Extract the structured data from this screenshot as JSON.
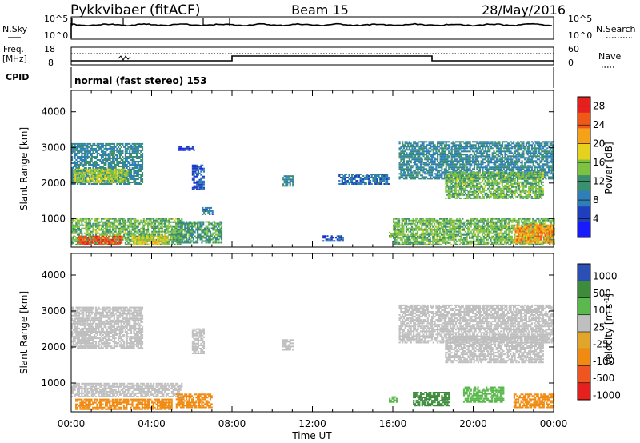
{
  "header": {
    "radar": "Pykkvibaer (fitACF)",
    "beam": "Beam 15",
    "date": "28/May/2016"
  },
  "top_panels": {
    "nsky_label": "N.Sky",
    "nsky_ticks": [
      "10^5",
      "10^0"
    ],
    "nsearch_label": "N.Search",
    "nsearch_ticks": [
      "10^5",
      "10^0"
    ],
    "freq_label_1": "Freq.",
    "freq_label_2": "[MHz]",
    "freq_ticks": [
      "18",
      "8"
    ],
    "nave_label": "Nave",
    "nave_ticks": [
      "60",
      "0"
    ],
    "cpid_label": "CPID",
    "cpid_value": "normal (fast stereo) 153"
  },
  "colors": {
    "power_scale": [
      "#1a1aff",
      "#1f3fbf",
      "#2e7fb8",
      "#3a8f6e",
      "#7dc241",
      "#e6d21c",
      "#f5a21a",
      "#ee5a16",
      "#e61f1f"
    ],
    "velocity_scale": [
      "#2a4fb5",
      "#3c8c3c",
      "#5ab84d",
      "#c8c8c0",
      "#e0a52a",
      "#f08a10",
      "#ee5520",
      "#e61f1f"
    ],
    "ground_scatter": "#bfbfbf"
  },
  "chart_data": [
    {
      "type": "heatmap",
      "parameter": "power",
      "ylabel": "Slant Range [km]",
      "xlabel": "Time UT",
      "x_ticks": [
        "00:00",
        "04:00",
        "08:00",
        "12:00",
        "16:00",
        "20:00",
        "00:00"
      ],
      "y_ticks": [
        1000,
        2000,
        3000,
        4000
      ],
      "ylim": [
        200,
        4600
      ],
      "xlim_hours": [
        0,
        24
      ],
      "colorbar_label": "Power [dB]",
      "colorbar_ticks": [
        4,
        8,
        12,
        16,
        20,
        24,
        28
      ],
      "colorbar_range": [
        0,
        30
      ],
      "regions": [
        {
          "t": [
            0.0,
            3.5
          ],
          "r": [
            1950,
            3100
          ],
          "value": 10
        },
        {
          "t": [
            0.1,
            2.8
          ],
          "r": [
            2000,
            2400
          ],
          "value": 16
        },
        {
          "t": [
            0.0,
            5.5
          ],
          "r": [
            250,
            1000
          ],
          "value": 14
        },
        {
          "t": [
            0.3,
            2.5
          ],
          "r": [
            250,
            500
          ],
          "value": 26
        },
        {
          "t": [
            3.0,
            4.8
          ],
          "r": [
            250,
            500
          ],
          "value": 18
        },
        {
          "t": [
            5.2,
            7.5
          ],
          "r": [
            300,
            900
          ],
          "value": 12
        },
        {
          "t": [
            6.0,
            6.6
          ],
          "r": [
            1800,
            2500
          ],
          "value": 6
        },
        {
          "t": [
            6.5,
            7.0
          ],
          "r": [
            1100,
            1300
          ],
          "value": 8
        },
        {
          "t": [
            5.3,
            6.1
          ],
          "r": [
            2900,
            3000
          ],
          "value": 4
        },
        {
          "t": [
            10.5,
            11.0
          ],
          "r": [
            1900,
            2200
          ],
          "value": 10
        },
        {
          "t": [
            12.5,
            13.5
          ],
          "r": [
            350,
            500
          ],
          "value": 6
        },
        {
          "t": [
            13.3,
            15.8
          ],
          "r": [
            1950,
            2250
          ],
          "value": 8
        },
        {
          "t": [
            15.8,
            16.2
          ],
          "r": [
            450,
            600
          ],
          "value": 14
        },
        {
          "t": [
            16.3,
            24.0
          ],
          "r": [
            2100,
            3150
          ],
          "value": 10
        },
        {
          "t": [
            18.6,
            23.5
          ],
          "r": [
            1550,
            2300
          ],
          "value": 14
        },
        {
          "t": [
            16.0,
            24.0
          ],
          "r": [
            250,
            1000
          ],
          "value": 14
        },
        {
          "t": [
            22.0,
            24.0
          ],
          "r": [
            300,
            800
          ],
          "value": 22
        }
      ]
    },
    {
      "type": "heatmap",
      "parameter": "velocity",
      "ylabel": "Slant Range [km]",
      "xlabel": "Time UT",
      "x_ticks": [
        "00:00",
        "04:00",
        "08:00",
        "12:00",
        "16:00",
        "20:00",
        "00:00"
      ],
      "y_ticks": [
        1000,
        2000,
        3000,
        4000
      ],
      "ylim": [
        200,
        4600
      ],
      "xlim_hours": [
        0,
        24
      ],
      "colorbar_label": "Velocity [m s-1]",
      "colorbar_ticks": [
        1000,
        500,
        100,
        25,
        -25,
        -100,
        -500,
        -1000
      ],
      "regions": [
        {
          "t": [
            0.0,
            3.5
          ],
          "r": [
            1950,
            3100
          ],
          "value": 0
        },
        {
          "t": [
            0.0,
            5.5
          ],
          "r": [
            600,
            1000
          ],
          "value": 0
        },
        {
          "t": [
            0.2,
            5.0
          ],
          "r": [
            250,
            550
          ],
          "value": -80
        },
        {
          "t": [
            5.2,
            7.0
          ],
          "r": [
            300,
            700
          ],
          "value": -120
        },
        {
          "t": [
            6.0,
            6.6
          ],
          "r": [
            1800,
            2500
          ],
          "value": 0
        },
        {
          "t": [
            10.5,
            11.0
          ],
          "r": [
            1900,
            2200
          ],
          "value": 0
        },
        {
          "t": [
            15.8,
            16.2
          ],
          "r": [
            450,
            600
          ],
          "value": 120
        },
        {
          "t": [
            16.3,
            24.0
          ],
          "r": [
            2100,
            3150
          ],
          "value": 0
        },
        {
          "t": [
            18.6,
            23.5
          ],
          "r": [
            1550,
            2300
          ],
          "value": 0
        },
        {
          "t": [
            17.0,
            18.8
          ],
          "r": [
            350,
            750
          ],
          "value": 300
        },
        {
          "t": [
            19.5,
            21.5
          ],
          "r": [
            450,
            900
          ],
          "value": 150
        },
        {
          "t": [
            22.0,
            24.0
          ],
          "r": [
            300,
            700
          ],
          "value": -200
        }
      ]
    }
  ]
}
